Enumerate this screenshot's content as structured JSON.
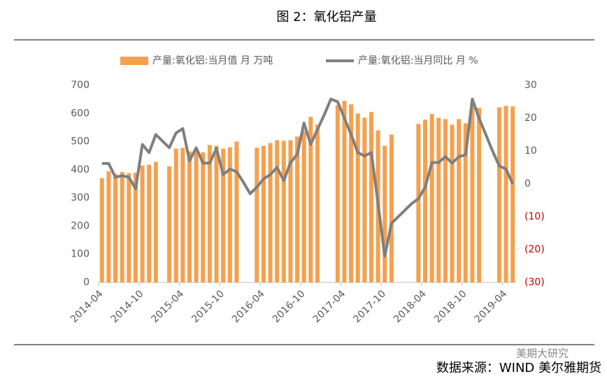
{
  "chart_data": {
    "type": "bar_line",
    "title": "图 2：氧化铝产量",
    "source": "数据来源：WIND  美尔雅期货",
    "watermark": "美期大研究",
    "categories": [
      "2014-04",
      null,
      null,
      null,
      null,
      null,
      "2014-10",
      null,
      null,
      null,
      null,
      null,
      "2015-04",
      null,
      null,
      null,
      null,
      null,
      "2015-10",
      null,
      null,
      null,
      null,
      null,
      "2016-04",
      null,
      null,
      null,
      null,
      null,
      "2016-10",
      null,
      null,
      null,
      null,
      null,
      "2017-04",
      null,
      null,
      null,
      null,
      null,
      "2017-10",
      null,
      null,
      null,
      null,
      null,
      "2018-04",
      null,
      null,
      null,
      null,
      null,
      "2018-10",
      null,
      null,
      null,
      null,
      null,
      "2019-04",
      null
    ],
    "series": [
      {
        "name": "产量:氧化铝:当月值 月 万吨",
        "type": "bar",
        "color": "#f5a04f",
        "values": [
          370,
          395,
          385,
          392,
          388,
          390,
          415,
          418,
          428,
          null,
          412,
          475,
          478,
          465,
          470,
          462,
          488,
          485,
          475,
          480,
          500,
          null,
          null,
          478,
          485,
          495,
          505,
          503,
          505,
          518,
          538,
          588,
          560,
          null,
          null,
          630,
          645,
          632,
          600,
          585,
          605,
          540,
          485,
          525,
          null,
          null,
          null,
          563,
          578,
          598,
          585,
          580,
          560,
          580,
          565,
          640,
          620,
          null,
          null,
          622,
          627,
          625
        ]
      },
      {
        "name": "产量:氧化铝:当月同比 月 %",
        "type": "line",
        "axis": "y2",
        "color": "#7f7f7f",
        "values": [
          6.2,
          6.2,
          2,
          2.5,
          2,
          -1.5,
          12,
          9.5,
          15,
          13,
          11,
          15.5,
          16.8,
          7,
          11,
          6.3,
          6.3,
          10.8,
          2.8,
          4.5,
          3.7,
          0.5,
          -3,
          -1,
          1.5,
          2.8,
          5,
          1,
          6.5,
          9,
          18.5,
          12,
          16.5,
          21,
          25.8,
          25,
          20,
          15,
          9.5,
          8.5,
          9.5,
          -6,
          -22,
          -12,
          -10,
          -8,
          -6,
          -4.5,
          -1,
          6.5,
          6.5,
          8.3,
          6.3,
          8.3,
          8.8,
          25.8,
          20,
          15,
          10,
          5.5,
          4.5,
          0
        ]
      }
    ],
    "ylim": [
      0,
      700
    ],
    "yticks": [
      0,
      100,
      200,
      300,
      400,
      500,
      600,
      700
    ],
    "y2lim": [
      -30,
      30
    ],
    "y2ticks": [
      {
        "value": -30,
        "label": "(30)"
      },
      {
        "value": -20,
        "label": "(20)"
      },
      {
        "value": -10,
        "label": "(10)"
      },
      0,
      10,
      20,
      30
    ],
    "y2tick_negative_color": "#c00000",
    "legend": "top"
  }
}
